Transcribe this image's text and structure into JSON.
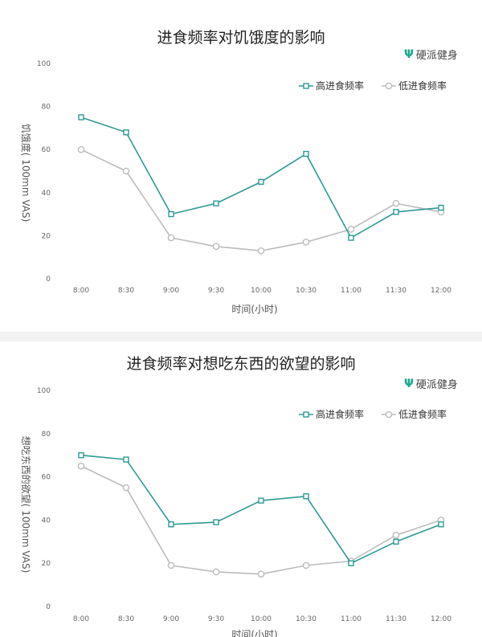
{
  "brand": {
    "name": "硬派健身",
    "icon": "brand-logo-icon",
    "color": "#1aa88f"
  },
  "colors": {
    "high": "#2e9a95",
    "low": "#bcbcbc"
  },
  "chart_data": [
    {
      "type": "line",
      "title": "进食频率对饥饿度的影响",
      "xlabel": "时间(小时)",
      "ylabel": "饥饿度( 100mm VAS)",
      "categories": [
        "8:00",
        "8:30",
        "9:00",
        "9:30",
        "10:00",
        "10:30",
        "11:00",
        "11:30",
        "12:00"
      ],
      "ylim": [
        0,
        100
      ],
      "yticks": [
        0,
        20,
        40,
        60,
        80,
        100
      ],
      "legend": "top-right",
      "grid": false,
      "series": [
        {
          "name": "高进食频率",
          "values": [
            75,
            68,
            30,
            35,
            45,
            58,
            19,
            31,
            33
          ],
          "marker": "square"
        },
        {
          "name": "低进食频率",
          "values": [
            60,
            50,
            19,
            15,
            13,
            17,
            23,
            35,
            31
          ],
          "marker": "circle"
        }
      ]
    },
    {
      "type": "line",
      "title": "进食频率对想吃东西的欲望的影响",
      "xlabel": "时间(小时)",
      "ylabel": "想吃东西的欲望( 100mm VAS)",
      "categories": [
        "8:00",
        "8:30",
        "9:00",
        "9:30",
        "10:00",
        "10:30",
        "11:00",
        "11:30",
        "12:00"
      ],
      "ylim": [
        0,
        100
      ],
      "yticks": [
        0,
        20,
        40,
        60,
        80,
        100
      ],
      "legend": "top-right",
      "grid": false,
      "series": [
        {
          "name": "高进食频率",
          "values": [
            70,
            68,
            38,
            39,
            49,
            51,
            20,
            30,
            38
          ],
          "marker": "square"
        },
        {
          "name": "低进食频率",
          "values": [
            65,
            55,
            19,
            16,
            15,
            19,
            21,
            33,
            40
          ],
          "marker": "circle"
        }
      ]
    }
  ]
}
